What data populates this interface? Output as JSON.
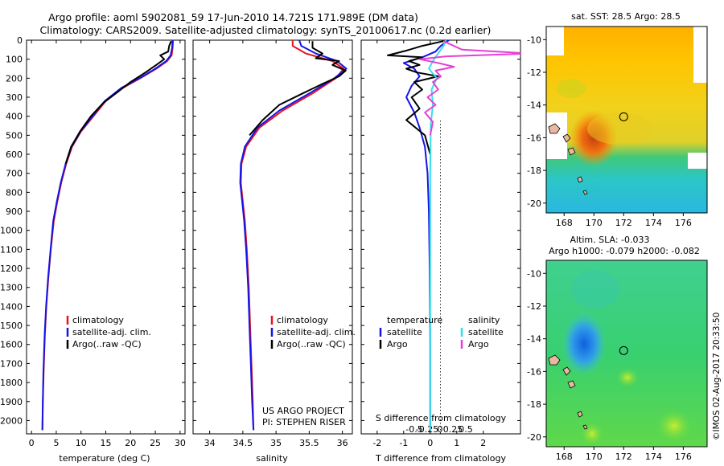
{
  "title_line1": "Argo profile: aoml 5902081_59 17-Jun-2010 14.721S 171.989E (DM data)",
  "title_line2": "Climatology: CARS2009. Satellite-adjusted climatology: synTS_20100617.nc (0.2d earlier)",
  "credit": "US ARGO PROJECT",
  "pi": "PI: STEPHEN RISER",
  "timestamp": "©IMOS 02-Aug-2017 20:33:50",
  "colors": {
    "climatology": "#e8141e",
    "satellite": "#1414e6",
    "argo": "#000000",
    "salinity_satellite": "#33e0e8",
    "salinity_argo": "#e640d6"
  },
  "chart_data": [
    {
      "id": "temperature",
      "type": "line",
      "xlabel": "temperature (deg C)",
      "xlim": [
        -1,
        31
      ],
      "xticks": [
        0,
        5,
        10,
        15,
        20,
        25,
        30
      ],
      "ylim": [
        0,
        2070
      ],
      "yticks": [
        0,
        100,
        200,
        300,
        400,
        500,
        600,
        700,
        800,
        900,
        1000,
        1100,
        1200,
        1300,
        1400,
        1500,
        1600,
        1700,
        1800,
        1900,
        2000
      ],
      "legend": [
        "climatology",
        "satellite-adj. clim.",
        "Argo(..raw -QC)"
      ],
      "series": [
        {
          "name": "climatology",
          "color": "#e8141e",
          "x": [
            28.6,
            28.5,
            28.3,
            27.4,
            25.2,
            22.0,
            18.5,
            15.0,
            12.5,
            10.0,
            8.2,
            7.0,
            6.0,
            5.2,
            4.5,
            3.9,
            3.4,
            3.0,
            2.7,
            2.45,
            2.3,
            2.2
          ],
          "y": [
            0,
            40,
            80,
            110,
            150,
            200,
            250,
            320,
            400,
            480,
            560,
            650,
            750,
            850,
            950,
            1100,
            1250,
            1400,
            1550,
            1750,
            1900,
            2050
          ]
        },
        {
          "name": "satellite-adj. clim.",
          "color": "#1414e6",
          "x": [
            28.5,
            28.4,
            28.1,
            27.2,
            25.0,
            21.8,
            18.2,
            14.8,
            12.3,
            9.9,
            8.1,
            6.9,
            5.9,
            5.1,
            4.4,
            3.85,
            3.35,
            2.95,
            2.65,
            2.4,
            2.28,
            2.2
          ],
          "y": [
            0,
            40,
            80,
            110,
            150,
            200,
            250,
            320,
            400,
            480,
            560,
            650,
            750,
            850,
            950,
            1100,
            1250,
            1400,
            1550,
            1750,
            1900,
            2050
          ]
        },
        {
          "name": "Argo(..raw -QC)",
          "color": "#000000",
          "x": [
            28.2,
            27.8,
            27.6,
            26.0,
            26.8,
            25.2,
            23.0,
            20.0,
            17.5,
            14.5,
            12.0,
            9.8,
            8.0,
            6.9
          ],
          "y": [
            5,
            30,
            60,
            80,
            100,
            130,
            170,
            220,
            270,
            330,
            400,
            480,
            560,
            650
          ]
        }
      ]
    },
    {
      "id": "salinity",
      "type": "line",
      "xlabel": "salinity",
      "xlim": [
        33.75,
        36.15
      ],
      "xticks": [
        34,
        34.5,
        35,
        35.5,
        36
      ],
      "xticklabels": [
        "34",
        "34.5",
        "35",
        "35.5",
        "36"
      ],
      "ylim": [
        0,
        2070
      ],
      "legend": [
        "climatology",
        "satellite-adj. clim.",
        "Argo(..raw -QC)"
      ],
      "series": [
        {
          "name": "climatology",
          "color": "#e8141e",
          "x": [
            35.25,
            35.25,
            35.45,
            35.85,
            36.02,
            35.9,
            35.55,
            35.1,
            34.75,
            34.55,
            34.48,
            34.47,
            34.5,
            34.53,
            34.56,
            34.59,
            34.61,
            34.63,
            34.65,
            34.66
          ],
          "y": [
            0,
            30,
            70,
            110,
            150,
            200,
            280,
            370,
            460,
            560,
            650,
            750,
            850,
            950,
            1100,
            1300,
            1500,
            1700,
            1900,
            2050
          ]
        },
        {
          "name": "satellite-adj. clim.",
          "color": "#1414e6",
          "x": [
            35.35,
            35.38,
            35.6,
            35.92,
            36.06,
            35.88,
            35.5,
            35.05,
            34.72,
            34.53,
            34.47,
            34.46,
            34.49,
            34.52,
            34.55,
            34.58,
            34.6,
            34.62,
            34.64,
            34.66
          ],
          "y": [
            0,
            30,
            70,
            110,
            150,
            200,
            280,
            370,
            460,
            560,
            650,
            750,
            850,
            950,
            1100,
            1300,
            1500,
            1700,
            1900,
            2050
          ]
        },
        {
          "name": "Argo(..raw -QC)",
          "color": "#000000",
          "x": [
            35.55,
            35.55,
            35.7,
            35.6,
            35.95,
            35.85,
            36.05,
            35.95,
            35.7,
            35.4,
            35.05,
            34.8,
            34.6
          ],
          "y": [
            5,
            40,
            70,
            95,
            110,
            130,
            160,
            190,
            230,
            280,
            340,
            420,
            500
          ]
        }
      ]
    },
    {
      "id": "difference",
      "type": "line",
      "xlabel": "T difference from climatology",
      "x2label": "S difference from climatology",
      "xlim": [
        -2.6,
        3.4
      ],
      "xticks": [
        -2,
        -1,
        0,
        1,
        2
      ],
      "x2ticks": [
        -0.5,
        -0.25,
        0,
        0.25,
        0.5
      ],
      "x2ticklabels": [
        "-0.5",
        "-0.25",
        "0",
        "0.25",
        "0.5"
      ],
      "ylim": [
        0,
        2070
      ],
      "legend_title_left": "temperature",
      "legend_title_right": "salinity",
      "legend": [
        "satellite",
        "Argo",
        "satellite",
        "Argo"
      ],
      "series": [
        {
          "name": "T satellite",
          "color": "#1414e6",
          "x": [
            0.7,
            0.4,
            0.2,
            -0.3,
            -1.0,
            -0.6,
            -0.4,
            -0.7,
            -0.9,
            -0.6,
            -0.4,
            -0.2,
            -0.1,
            -0.05,
            -0.02,
            0,
            0
          ],
          "y": [
            0,
            30,
            60,
            90,
            120,
            150,
            190,
            240,
            300,
            380,
            460,
            560,
            700,
            900,
            1200,
            1600,
            2050
          ]
        },
        {
          "name": "T Argo",
          "color": "#000000",
          "x": [
            0.5,
            -0.3,
            -0.9,
            -1.6,
            -0.3,
            -0.8,
            -0.4,
            -0.9,
            -0.5,
            0.3,
            -0.6,
            -0.3,
            -0.7,
            -0.4,
            -0.9,
            -0.2,
            0
          ],
          "y": [
            5,
            30,
            55,
            80,
            90,
            110,
            130,
            150,
            170,
            190,
            220,
            260,
            300,
            360,
            420,
            500,
            600
          ]
        },
        {
          "name": "S satellite",
          "color": "#33e0e8",
          "x": [
            0.6,
            0.5,
            0.3,
            0.1,
            -0.05,
            0.25,
            0.05,
            0.1,
            0.02,
            0.0,
            0.0,
            0.0
          ],
          "y": [
            0,
            30,
            70,
            110,
            150,
            200,
            260,
            340,
            440,
            700,
            1200,
            2050
          ]
        },
        {
          "name": "S Argo",
          "color": "#e640d6",
          "x": [
            0.5,
            1.2,
            3.8,
            0.6,
            -0.4,
            0.3,
            0.9,
            0.2,
            0.4,
            0.1,
            0.3,
            -0.1,
            0.2,
            -0.2,
            0.1,
            0.0
          ],
          "y": [
            5,
            50,
            70,
            85,
            100,
            120,
            140,
            160,
            190,
            220,
            260,
            300,
            340,
            380,
            430,
            500
          ]
        }
      ]
    },
    {
      "id": "sst_map",
      "type": "heatmap",
      "title": "sat. SST: 28.5  Argo: 28.5",
      "xlim": [
        166.8,
        177.6
      ],
      "ylim": [
        -20.6,
        -9.2
      ],
      "xticks": [
        168,
        170,
        172,
        174,
        176
      ],
      "yticks": [
        -10,
        -12,
        -14,
        -16,
        -18,
        -20
      ],
      "float_position": [
        172.0,
        -14.72
      ]
    },
    {
      "id": "sla_map",
      "type": "heatmap",
      "title": "Altim. SLA: -0.033",
      "subtitle": "Argo h1000: -0.079 h2000: -0.082",
      "xlim": [
        166.8,
        177.6
      ],
      "ylim": [
        -20.6,
        -9.2
      ],
      "xticks": [
        168,
        170,
        172,
        174,
        176
      ],
      "yticks": [
        -10,
        -12,
        -14,
        -16,
        -18,
        -20
      ],
      "float_position": [
        172.0,
        -14.72
      ]
    }
  ]
}
